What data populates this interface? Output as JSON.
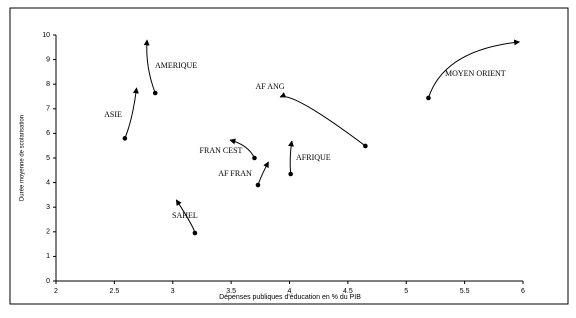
{
  "chart_data": {
    "type": "arrow-scatter",
    "xlabel": "Dépenses publiques d'éducation en % du PIB",
    "ylabel": "Durée moyenne de scolarisation",
    "xlim": [
      2,
      6
    ],
    "ylim": [
      0,
      10
    ],
    "xticks": [
      2,
      2.5,
      3,
      3.5,
      4,
      4.5,
      5,
      5.5,
      6
    ],
    "yticks": [
      0,
      1,
      2,
      3,
      4,
      5,
      6,
      7,
      8,
      9,
      10
    ],
    "color": "#000000",
    "series": [
      {
        "name": "AMERIQUE",
        "x": [
          2.85,
          2.78
        ],
        "values": [
          7.64,
          9.8
        ]
      },
      {
        "name": "ASIE",
        "x": [
          2.59,
          2.69
        ],
        "values": [
          5.8,
          7.85
        ]
      },
      {
        "name": "MOYEN ORIENT",
        "x": [
          5.19,
          5.97
        ],
        "values": [
          7.44,
          9.72
        ]
      },
      {
        "name": "AF ANG",
        "x": [
          4.65,
          3.92
        ],
        "values": [
          5.49,
          7.48
        ]
      },
      {
        "name": "AFRIQUE",
        "x": [
          4.01,
          4.02
        ],
        "values": [
          4.35,
          5.69
        ]
      },
      {
        "name": "FRAN CEST",
        "x": [
          3.7,
          3.49
        ],
        "values": [
          5.0,
          5.73
        ]
      },
      {
        "name": "AF FRAN",
        "x": [
          3.73,
          3.82
        ],
        "values": [
          3.9,
          4.84
        ]
      },
      {
        "name": "SAHEL",
        "x": [
          3.19,
          3.03
        ],
        "values": [
          1.95,
          3.3
        ]
      }
    ]
  }
}
